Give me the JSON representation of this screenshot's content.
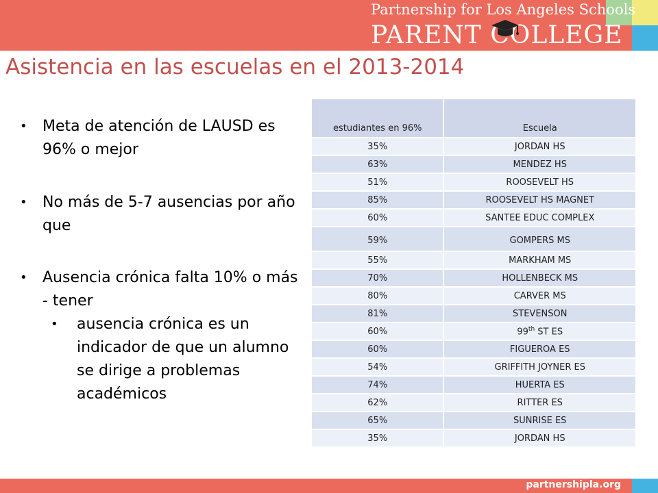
{
  "header": {
    "org_name": "Partnership for Los Angeles Schools",
    "program_name": "PARENT COLLEGE",
    "icon": "graduation-cap-icon",
    "colors": {
      "band": "#ec6a5c",
      "green": "#a6d49b",
      "yellow": "#f2ea7d",
      "blue": "#45b3e2"
    }
  },
  "title": "Asistencia en las escuelas en el 2013-2014",
  "bullets": [
    "Meta de atención de LAUSD es 96% o mejor",
    "No más de 5-7 ausencias por año que",
    "Ausencia crónica falta 10% o más - tener"
  ],
  "sub_bullet": "ausencia crónica es un indicador de que un alumno se dirige a problemas académicos",
  "table": {
    "headers": [
      "estudiantes en 96%",
      "Escuela"
    ],
    "rows": [
      {
        "pct": "35%",
        "school": "JORDAN HS"
      },
      {
        "pct": "63%",
        "school": "MENDEZ HS"
      },
      {
        "pct": "51%",
        "school": "ROOSEVELT HS"
      },
      {
        "pct": "85%",
        "school": "ROOSEVELT HS MAGNET"
      },
      {
        "pct": "60%",
        "school": "SANTEE EDUC COMPLEX"
      },
      {
        "pct": "59%",
        "school": "GOMPERS MS"
      },
      {
        "pct": "55%",
        "school": "MARKHAM MS"
      },
      {
        "pct": "70%",
        "school": "HOLLENBECK MS"
      },
      {
        "pct": "80%",
        "school": "CARVER MS"
      },
      {
        "pct": "81%",
        "school": "STEVENSON"
      },
      {
        "pct": "60%",
        "school_prefix": "99",
        "school_sup": "th",
        "school_suffix": " ST ES"
      },
      {
        "pct": "60%",
        "school": "FIGUEROA ES"
      },
      {
        "pct": "54%",
        "school": "GRIFFITH JOYNER ES"
      },
      {
        "pct": "74%",
        "school": "HUERTA ES"
      },
      {
        "pct": "62%",
        "school": "RITTER ES"
      },
      {
        "pct": "65%",
        "school": "SUNRISE ES"
      },
      {
        "pct": "35%",
        "school": "JORDAN HS"
      }
    ]
  },
  "footer": {
    "url": "partnershipla.org"
  }
}
